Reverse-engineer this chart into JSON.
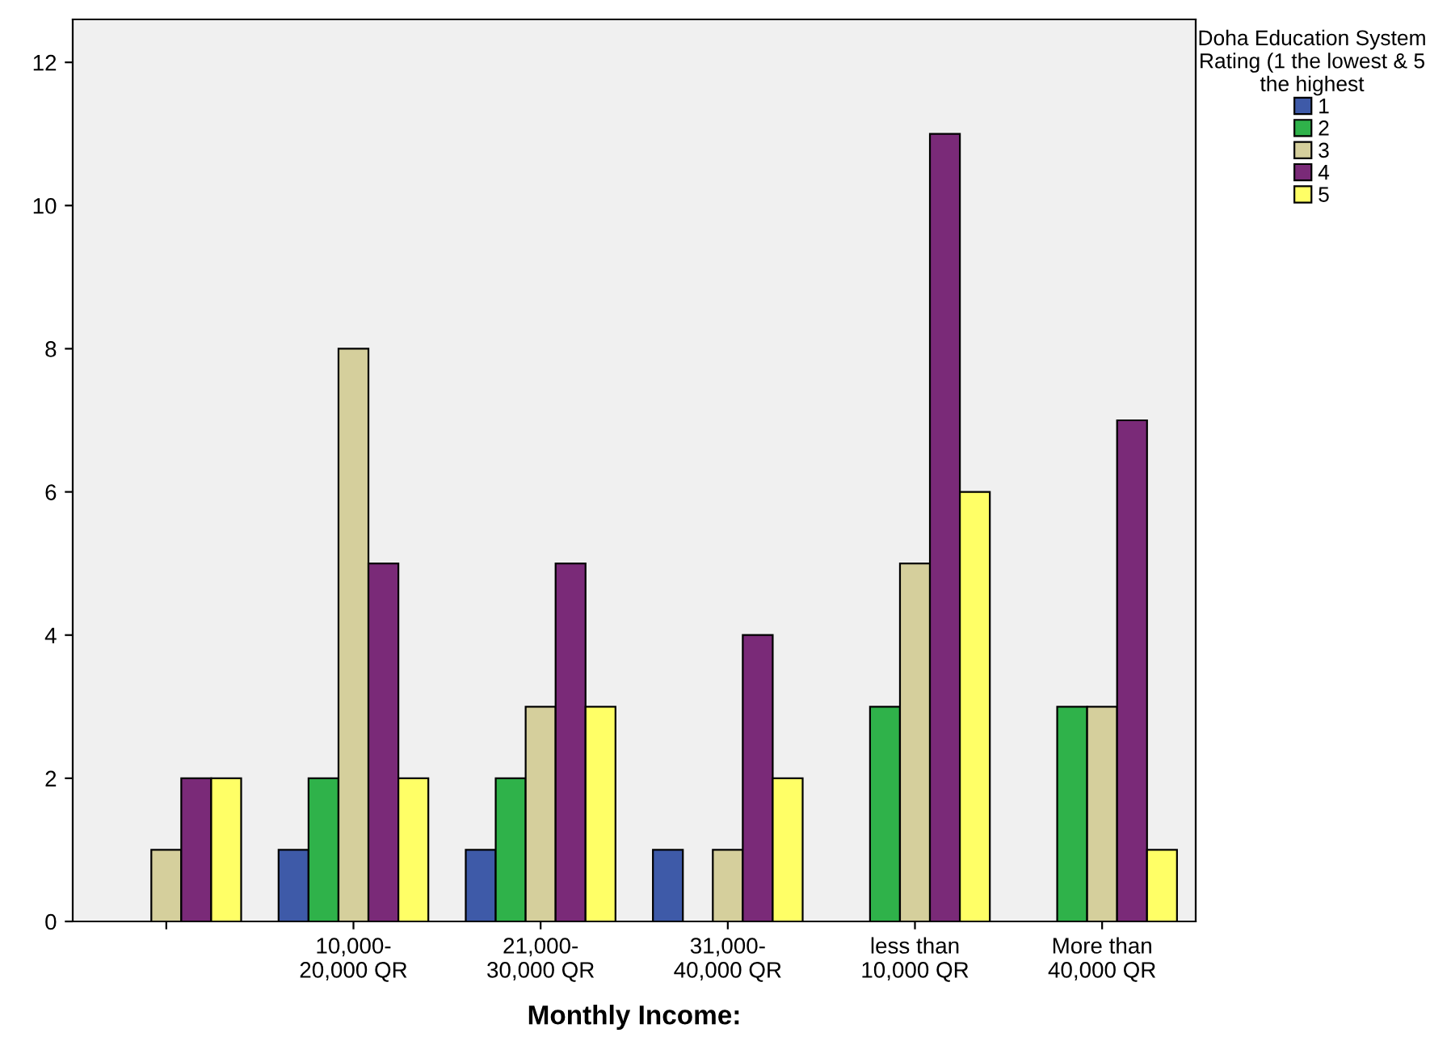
{
  "chart_data": {
    "type": "bar",
    "xlabel": "Monthly Income:",
    "legend_title": "Doha Education System\nRating (1 the lowest & 5\nthe highest",
    "categories": [
      null,
      "10,000-\n20,000 QR",
      "21,000-\n30,000 QR",
      "31,000-\n40,000 QR",
      "less than\n10,000 QR",
      "More than\n40,000 QR"
    ],
    "series": [
      {
        "name": "1",
        "color": "#3e5aa8",
        "values": [
          null,
          1,
          1,
          1,
          null,
          null
        ]
      },
      {
        "name": "2",
        "color": "#2fb24a",
        "values": [
          null,
          2,
          2,
          null,
          3,
          3
        ]
      },
      {
        "name": "3",
        "color": "#d5cf9c",
        "values": [
          1,
          8,
          3,
          1,
          5,
          3
        ]
      },
      {
        "name": "4",
        "color": "#7a2a78",
        "values": [
          2,
          5,
          5,
          4,
          11,
          7
        ]
      },
      {
        "name": "5",
        "color": "#ffff66",
        "values": [
          2,
          2,
          3,
          2,
          6,
          1
        ]
      }
    ],
    "ylim": [
      0,
      12.6
    ],
    "yticks": [
      0,
      2,
      4,
      6,
      8,
      10,
      12
    ],
    "grid": false,
    "legend": "top right"
  }
}
